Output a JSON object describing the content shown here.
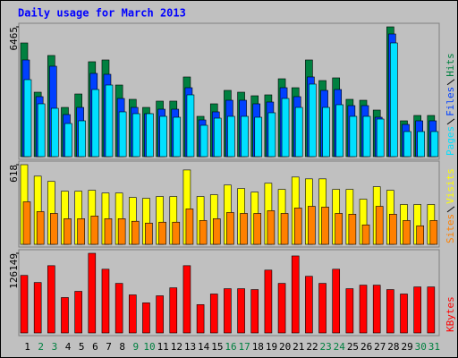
{
  "chart_data": {
    "type": "bar",
    "title": "Daily usage for March 2013",
    "categories": [
      "1",
      "2",
      "3",
      "4",
      "5",
      "6",
      "7",
      "8",
      "9",
      "10",
      "11",
      "12",
      "13",
      "14",
      "15",
      "16",
      "17",
      "18",
      "19",
      "20",
      "21",
      "22",
      "23",
      "24",
      "25",
      "26",
      "27",
      "28",
      "29",
      "30",
      "31"
    ],
    "category_colors": [
      "#000000",
      "#008040",
      "#008040",
      "#000000",
      "#000000",
      "#000000",
      "#000000",
      "#000000",
      "#008040",
      "#008040",
      "#000000",
      "#000000",
      "#000000",
      "#000000",
      "#000000",
      "#008040",
      "#008040",
      "#000000",
      "#000000",
      "#000000",
      "#000000",
      "#000000",
      "#008040",
      "#008040",
      "#000000",
      "#000000",
      "#000000",
      "#000000",
      "#000000",
      "#008040",
      "#008040"
    ],
    "panels": [
      {
        "ylim": [
          0,
          6465
        ],
        "yticks": [
          6465
        ],
        "series": [
          {
            "name": "Hits",
            "color": "#008040",
            "values": [
              5663,
              3210,
              5039,
              2452,
              3121,
              4727,
              4816,
              3567,
              2854,
              2452,
              2765,
              2765,
              3969,
              2007,
              2631,
              3300,
              3210,
              3032,
              3077,
              3879,
              3433,
              4816,
              3790,
              3924,
              2854,
              2809,
              2319,
              6465,
              1784,
              2051,
              2051
            ]
          },
          {
            "name": "Files",
            "color": "#0040ff",
            "values": [
              4816,
              2988,
              4504,
              2096,
              2452,
              4147,
              4102,
              2898,
              2452,
              2140,
              2363,
              2363,
              3433,
              1828,
              2230,
              2809,
              2809,
              2631,
              2720,
              3433,
              2988,
              3969,
              3300,
              3344,
              2542,
              2542,
              1962,
              6109,
              1605,
              1784,
              1784
            ]
          },
          {
            "name": "Pages",
            "color": "#00e0ff",
            "values": [
              3835,
              2631,
              2408,
              1650,
              1784,
              3344,
              3567,
              2230,
              2140,
              2140,
              2007,
              1962,
              3077,
              1561,
              1917,
              2007,
              2007,
              1962,
              2185,
              2898,
              2452,
              3612,
              2452,
              2586,
              2007,
              2007,
              1873,
              5663,
              1249,
              1249,
              1249
            ]
          }
        ]
      },
      {
        "ylim": [
          0,
          618
        ],
        "yticks": [
          618
        ],
        "series": [
          {
            "name": "Visits",
            "color": "#ffff00",
            "values": [
              618,
              529,
              488,
              412,
              412,
              419,
              398,
              398,
              364,
              357,
              371,
              371,
              577,
              371,
              385,
              460,
              433,
              405,
              474,
              426,
              522,
              508,
              508,
              426,
              426,
              350,
              447,
              419,
              309,
              309,
              309
            ]
          },
          {
            "name": "Sites",
            "color": "#ff8000",
            "values": [
              330,
              254,
              240,
              199,
              199,
              220,
              199,
              199,
              179,
              165,
              172,
              172,
              275,
              185,
              199,
              247,
              240,
              240,
              261,
              240,
              282,
              295,
              289,
              240,
              234,
              151,
              295,
              234,
              185,
              144,
              185
            ]
          }
        ]
      },
      {
        "ylim": [
          0,
          126149
        ],
        "yticks": [
          126149
        ],
        "series": [
          {
            "name": "KBytes",
            "color": "#ff0000",
            "values": [
              91110,
              79900,
              106530,
              56070,
              65880,
              126149,
              100920,
              78500,
              60270,
              47660,
              58870,
              71490,
              106530,
              44850,
              61670,
              70090,
              70090,
              68680,
              99520,
              78500,
              121950,
              89710,
              78500,
              100920,
              70090,
              75690,
              75690,
              68680,
              61670,
              72890,
              72890
            ]
          }
        ]
      }
    ]
  }
}
